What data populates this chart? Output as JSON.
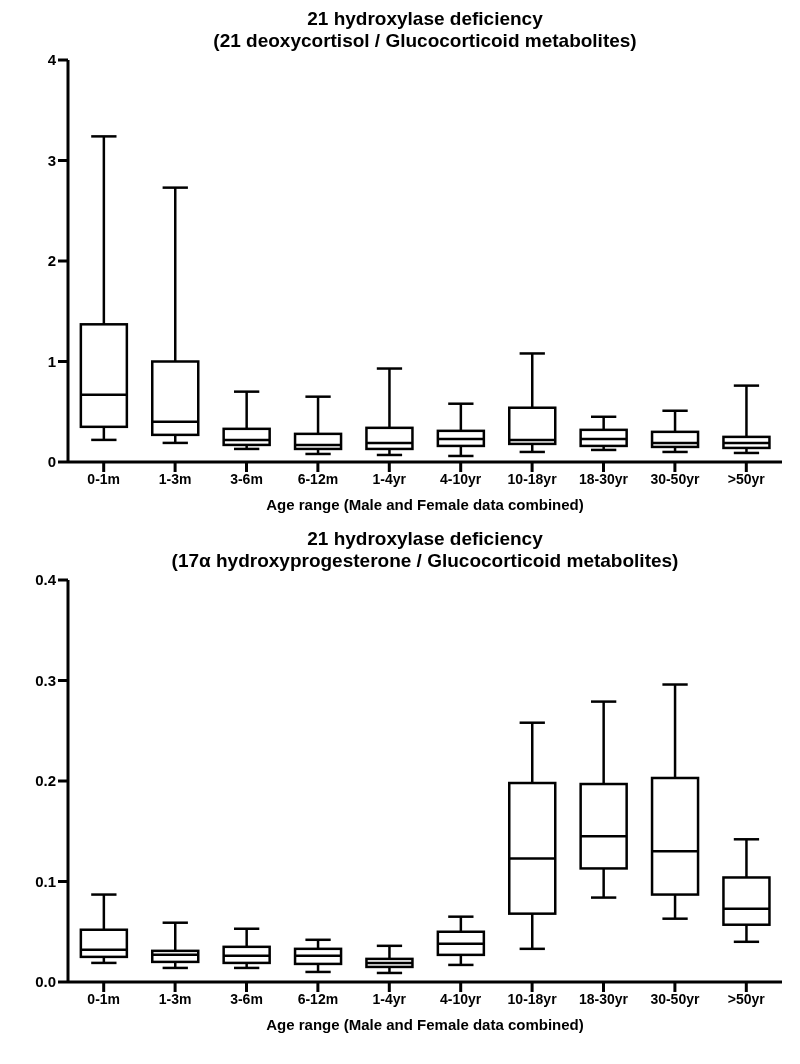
{
  "chart_data": [
    {
      "type": "box",
      "title": "21 hydroxylase deficiency",
      "subtitle": "(21 deoxycortisol / Glucocorticoid metabolites)",
      "xlabel": "Age range (Male and Female data combined)",
      "categories": [
        "0-1m",
        "1-3m",
        "3-6m",
        "6-12m",
        "1-4yr",
        "4-10yr",
        "10-18yr",
        "18-30yr",
        "30-50yr",
        ">50yr"
      ],
      "ylim": [
        0,
        4
      ],
      "yticks": [
        0,
        1,
        2,
        3,
        4
      ],
      "grid": false,
      "boxes": [
        {
          "low": 0.22,
          "q1": 0.35,
          "median": 0.67,
          "q3": 1.37,
          "high": 3.24
        },
        {
          "low": 0.19,
          "q1": 0.27,
          "median": 0.4,
          "q3": 1.0,
          "high": 2.73
        },
        {
          "low": 0.13,
          "q1": 0.17,
          "median": 0.22,
          "q3": 0.33,
          "high": 0.7
        },
        {
          "low": 0.08,
          "q1": 0.13,
          "median": 0.17,
          "q3": 0.28,
          "high": 0.65
        },
        {
          "low": 0.07,
          "q1": 0.13,
          "median": 0.19,
          "q3": 0.34,
          "high": 0.93
        },
        {
          "low": 0.06,
          "q1": 0.16,
          "median": 0.23,
          "q3": 0.31,
          "high": 0.58
        },
        {
          "low": 0.1,
          "q1": 0.18,
          "median": 0.22,
          "q3": 0.54,
          "high": 1.08
        },
        {
          "low": 0.12,
          "q1": 0.16,
          "median": 0.23,
          "q3": 0.32,
          "high": 0.45
        },
        {
          "low": 0.1,
          "q1": 0.15,
          "median": 0.19,
          "q3": 0.3,
          "high": 0.51
        },
        {
          "low": 0.09,
          "q1": 0.14,
          "median": 0.19,
          "q3": 0.25,
          "high": 0.76
        }
      ]
    },
    {
      "type": "box",
      "title": "21 hydroxylase deficiency",
      "subtitle": "(17α hydroxyprogesterone / Glucocorticoid metabolites)",
      "xlabel": "Age range (Male and Female data combined)",
      "categories": [
        "0-1m",
        "1-3m",
        "3-6m",
        "6-12m",
        "1-4yr",
        "4-10yr",
        "10-18yr",
        "18-30yr",
        "30-50yr",
        ">50yr"
      ],
      "ylim": [
        0,
        0.4
      ],
      "yticks": [
        {
          "value": 0,
          "label": "0.0"
        },
        0.1,
        0.2,
        0.3,
        0.4
      ],
      "grid": false,
      "boxes": [
        {
          "low": 0.019,
          "q1": 0.025,
          "median": 0.032,
          "q3": 0.052,
          "high": 0.087
        },
        {
          "low": 0.014,
          "q1": 0.02,
          "median": 0.027,
          "q3": 0.031,
          "high": 0.059
        },
        {
          "low": 0.014,
          "q1": 0.019,
          "median": 0.026,
          "q3": 0.035,
          "high": 0.053
        },
        {
          "low": 0.01,
          "q1": 0.018,
          "median": 0.026,
          "q3": 0.033,
          "high": 0.042
        },
        {
          "low": 0.009,
          "q1": 0.015,
          "median": 0.019,
          "q3": 0.023,
          "high": 0.036
        },
        {
          "low": 0.017,
          "q1": 0.027,
          "median": 0.038,
          "q3": 0.05,
          "high": 0.065
        },
        {
          "low": 0.033,
          "q1": 0.068,
          "median": 0.123,
          "q3": 0.198,
          "high": 0.258
        },
        {
          "low": 0.084,
          "q1": 0.113,
          "median": 0.145,
          "q3": 0.197,
          "high": 0.279
        },
        {
          "low": 0.063,
          "q1": 0.087,
          "median": 0.13,
          "q3": 0.203,
          "high": 0.296
        },
        {
          "low": 0.04,
          "q1": 0.057,
          "median": 0.073,
          "q3": 0.104,
          "high": 0.142
        }
      ]
    }
  ]
}
